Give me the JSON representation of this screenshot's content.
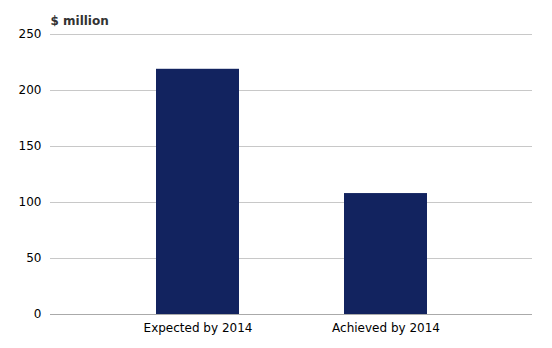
{
  "chart_data": {
    "type": "bar",
    "categories": [
      "Expected by 2014",
      "Achieved by 2014"
    ],
    "values": [
      218.94,
      107.98
    ],
    "color": "#12235f",
    "ylabel": "$ million",
    "ylim": [
      0,
      250
    ],
    "yticks": [
      0,
      50,
      100,
      150,
      200,
      250
    ],
    "grid": true
  }
}
